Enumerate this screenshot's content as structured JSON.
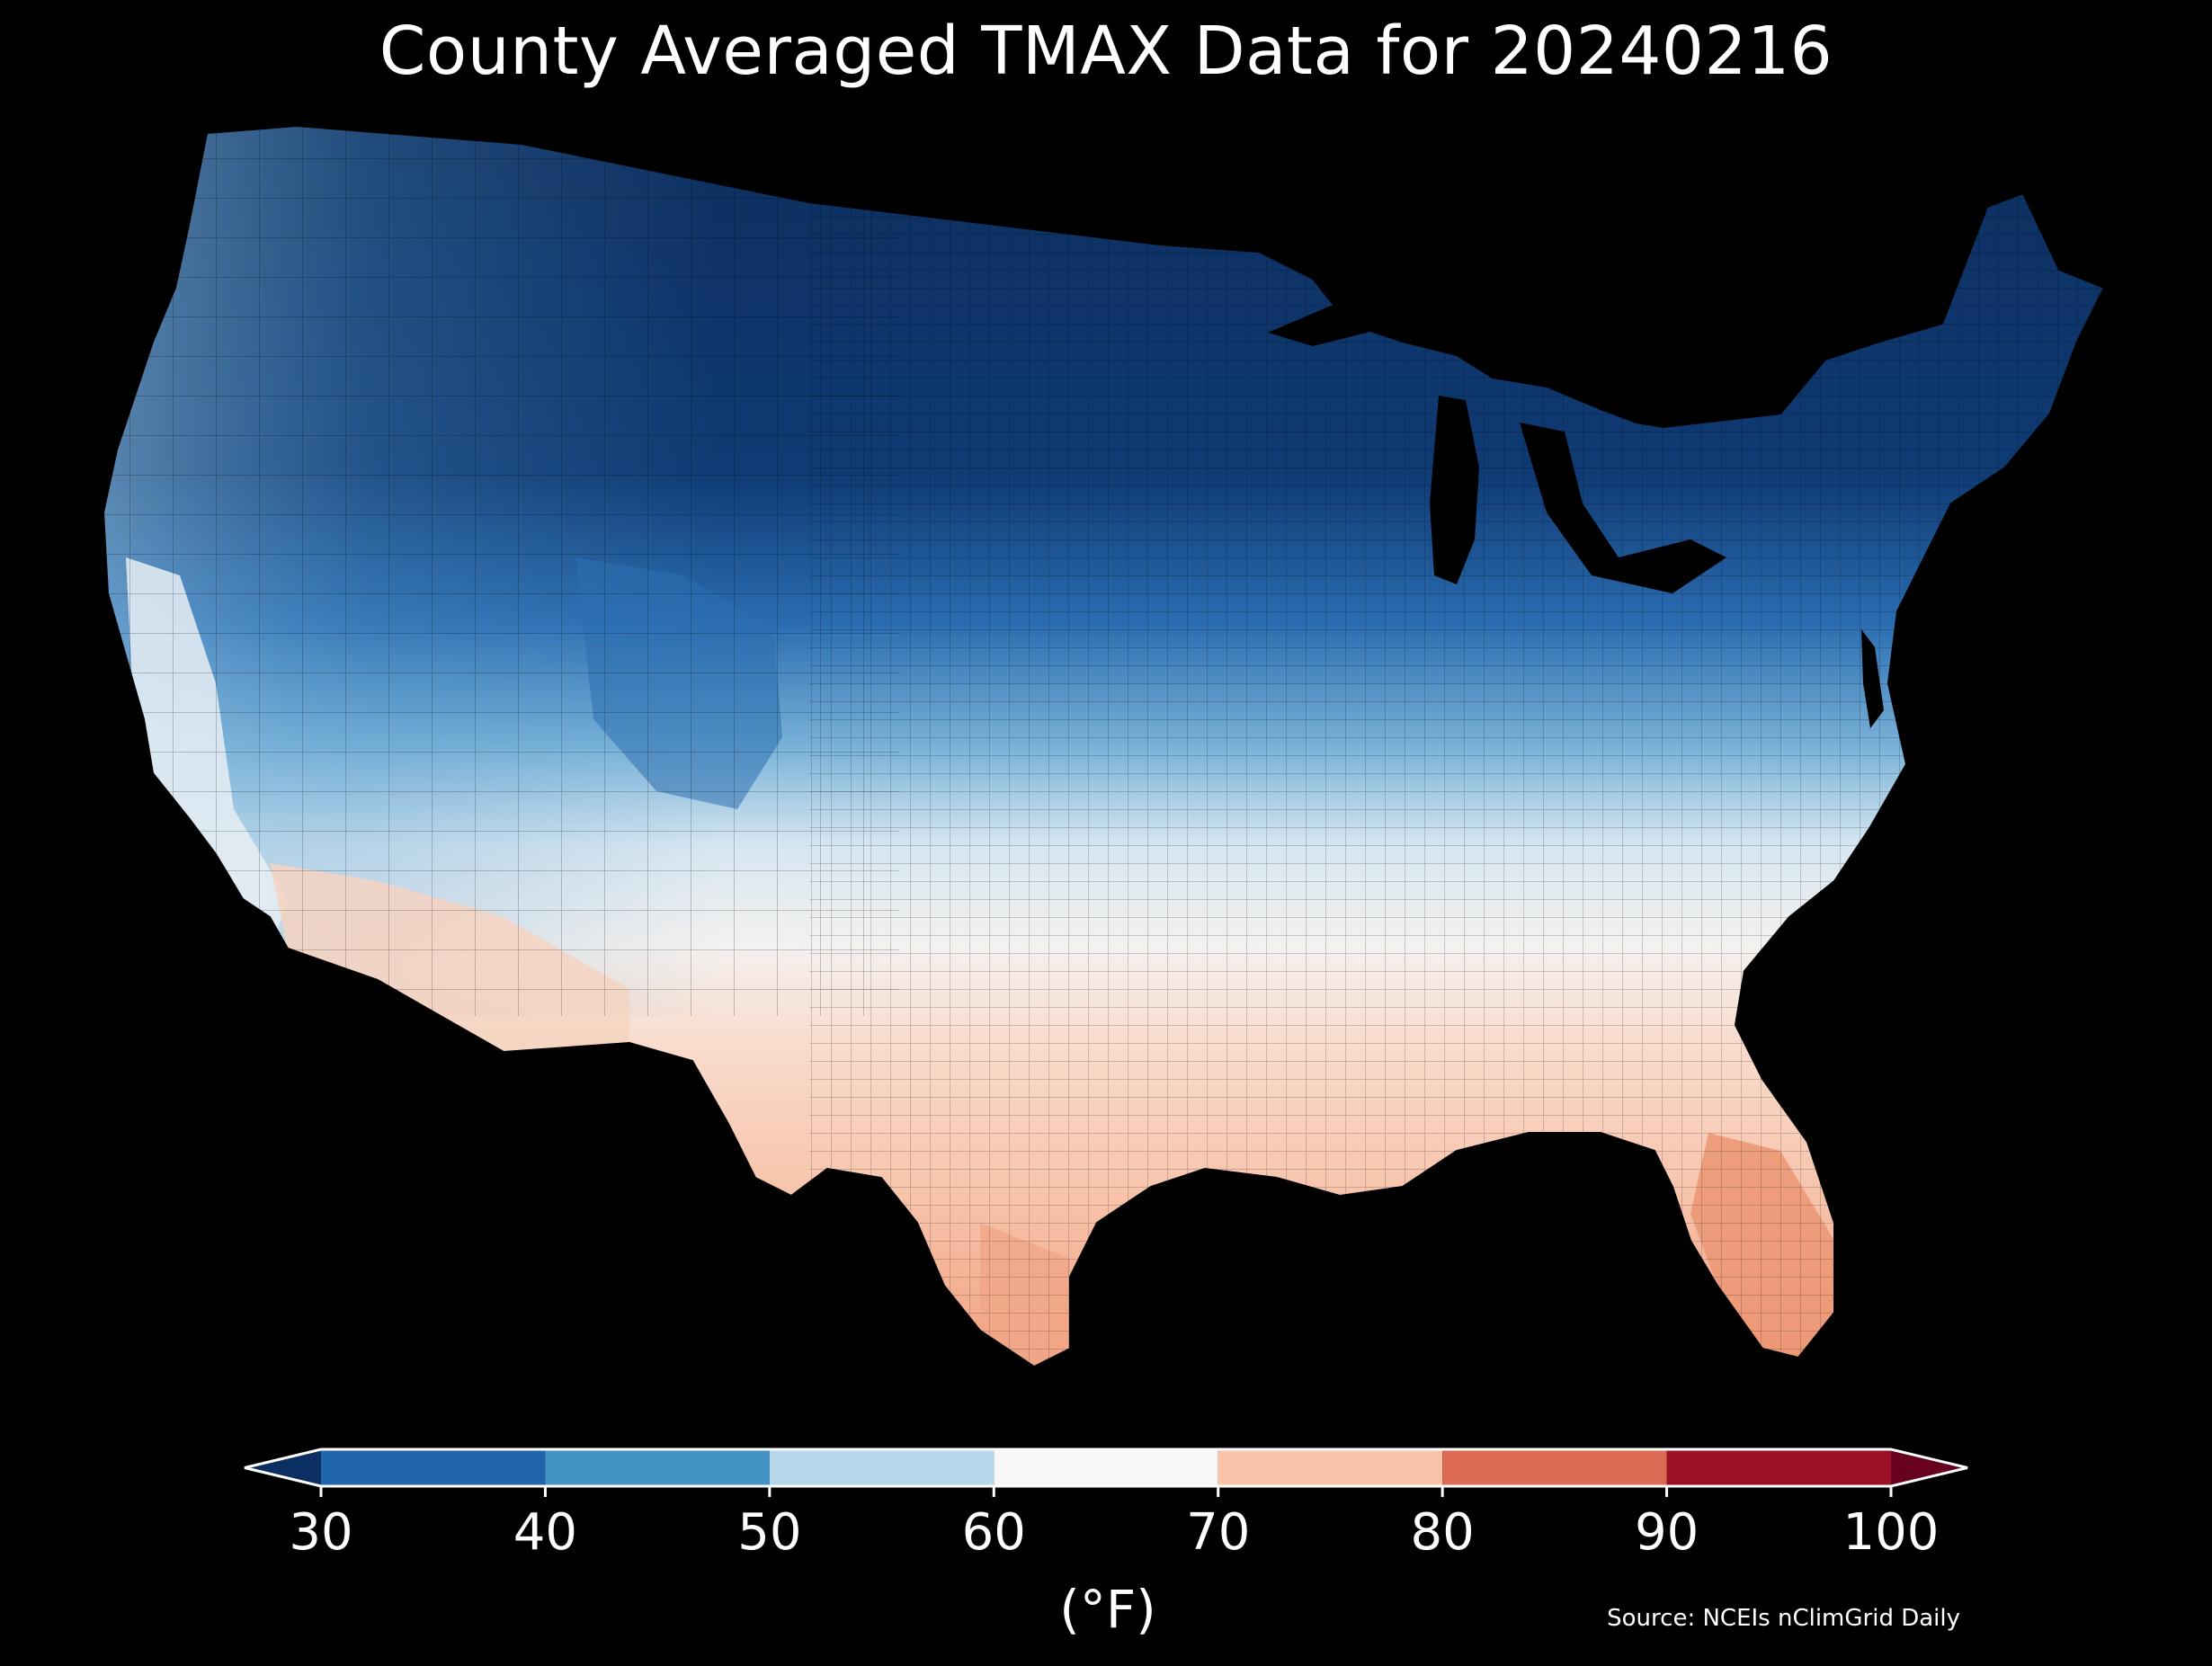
{
  "title": "County Averaged TMAX Data for 20240216",
  "colorbar": {
    "ticks": [
      "30",
      "40",
      "50",
      "60",
      "70",
      "80",
      "90",
      "100"
    ],
    "units": "(°F)",
    "bins": [
      {
        "range": [
          30,
          40
        ],
        "color": "#2166ac"
      },
      {
        "range": [
          40,
          50
        ],
        "color": "#4393c3"
      },
      {
        "range": [
          50,
          60
        ],
        "color": "#b6d6e9"
      },
      {
        "range": [
          60,
          70
        ],
        "color": "#f7f7f7"
      },
      {
        "range": [
          70,
          80
        ],
        "color": "#fbc4a8"
      },
      {
        "range": [
          80,
          90
        ],
        "color": "#dd6a52"
      },
      {
        "range": [
          90,
          100
        ],
        "color": "#9b1226"
      }
    ],
    "under_color": "#0c2f63",
    "over_color": "#67001f",
    "extend": "both"
  },
  "source": "Source: NCEIs nClimGrid Daily",
  "map": {
    "region": "Contiguous United States",
    "background": "#000000",
    "county_borders": true
  }
}
